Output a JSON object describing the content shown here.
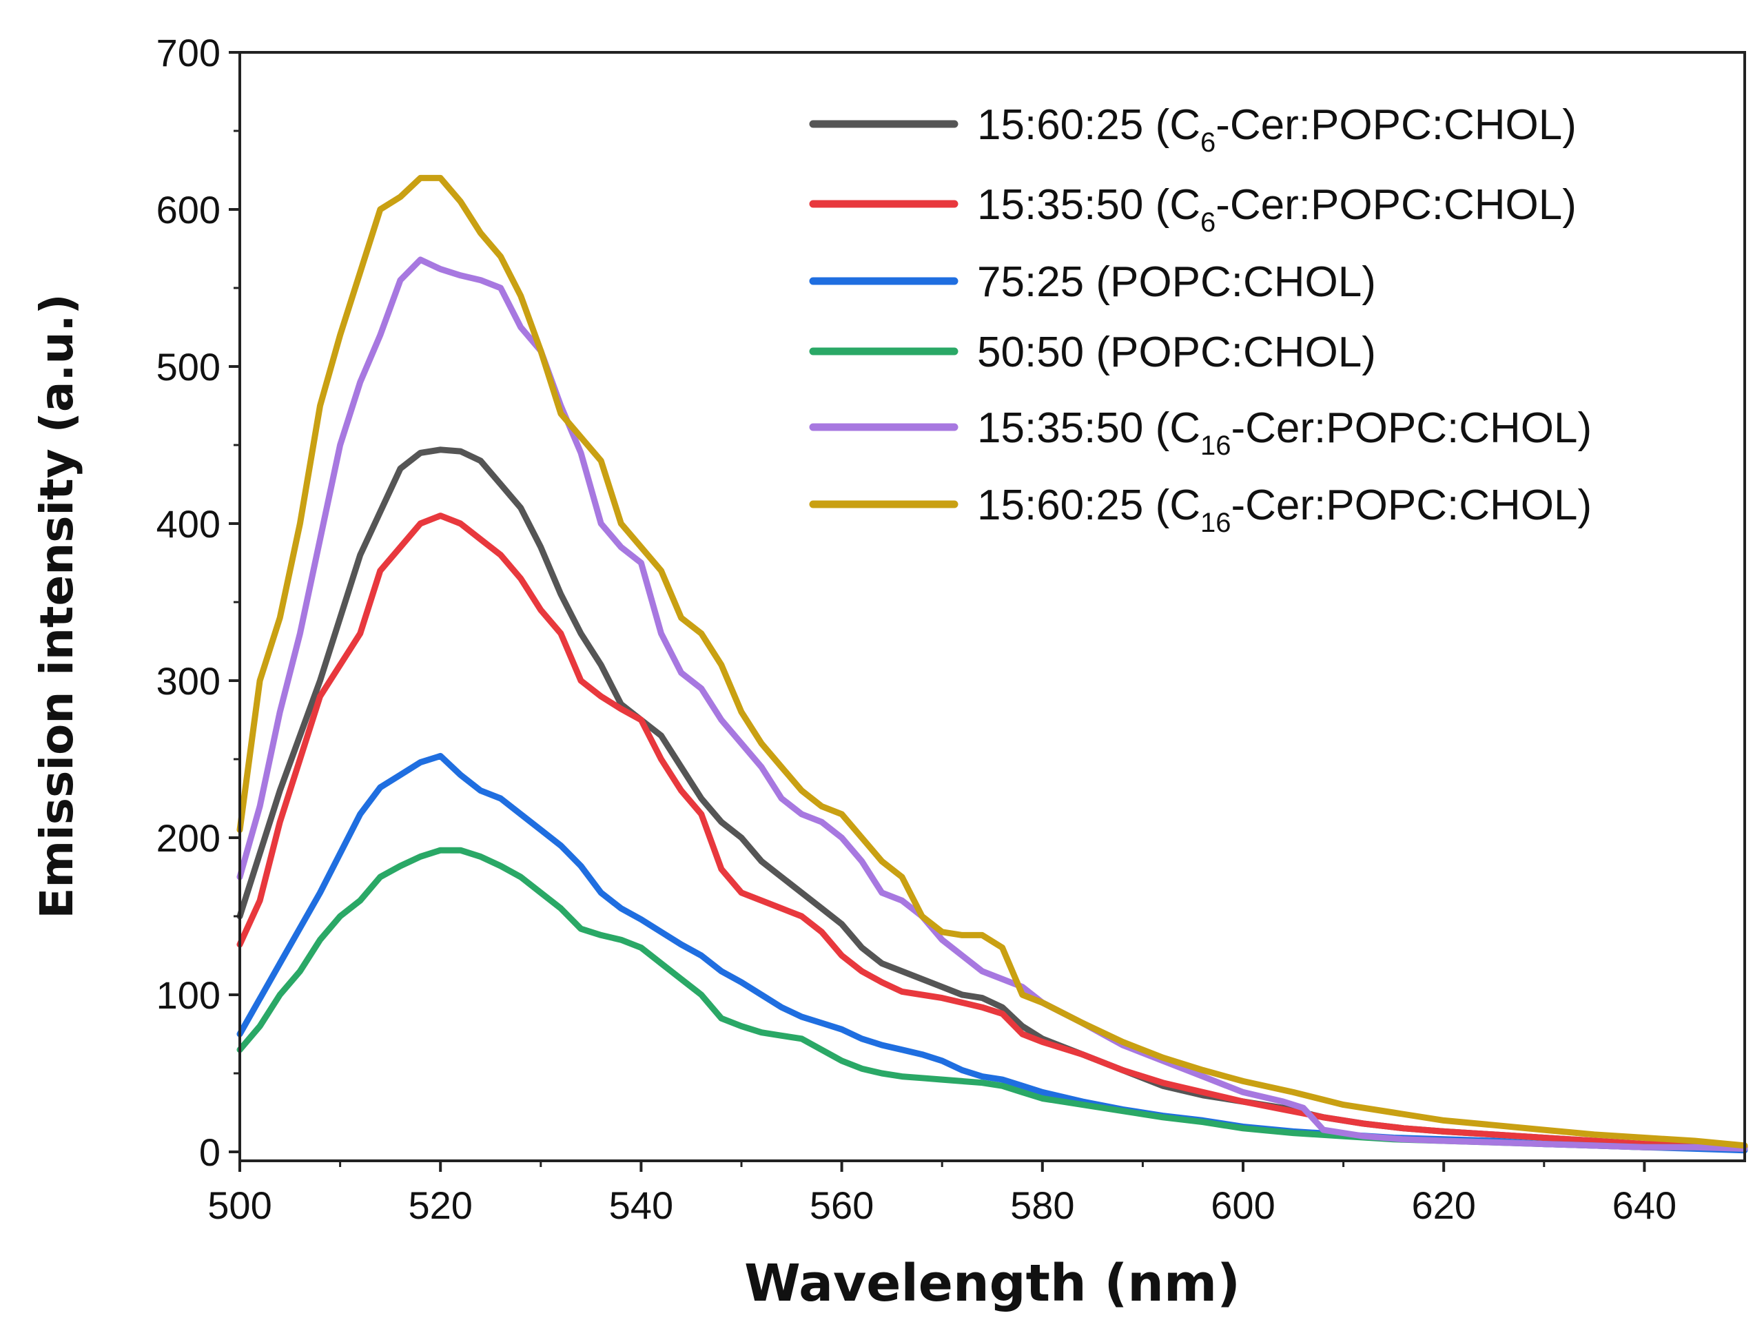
{
  "chart_data": {
    "type": "line",
    "title": "",
    "xlabel": "Wavelength (nm)",
    "ylabel": "Emission intensity (a.u.)",
    "xlim": [
      500,
      650
    ],
    "ylim": [
      0,
      700
    ],
    "x_ticks": [
      500,
      520,
      540,
      560,
      580,
      600,
      620,
      640
    ],
    "y_ticks": [
      0,
      100,
      200,
      300,
      400,
      500,
      600,
      700
    ],
    "grid": false,
    "legend_position": "top-right",
    "series": [
      {
        "name": "15:60:25 (C6-Cer:POPC:CHOL)",
        "label_main": "15:60:25 (C",
        "label_sub": "6",
        "label_rest": "-Cer:POPC:CHOL)",
        "color": "#555555",
        "x": [
          500,
          504,
          508,
          512,
          516,
          518,
          520,
          522,
          524,
          526,
          528,
          530,
          532,
          534,
          536,
          538,
          540,
          542,
          544,
          546,
          548,
          550,
          552,
          554,
          556,
          558,
          560,
          562,
          564,
          566,
          568,
          570,
          572,
          574,
          576,
          578,
          580,
          584,
          588,
          592,
          596,
          600,
          604,
          608,
          612,
          616,
          620,
          625,
          630,
          635,
          640,
          645,
          650
        ],
        "y": [
          150,
          230,
          300,
          380,
          435,
          445,
          447,
          446,
          440,
          425,
          410,
          385,
          355,
          330,
          310,
          285,
          275,
          265,
          245,
          225,
          210,
          200,
          185,
          175,
          165,
          155,
          145,
          130,
          120,
          115,
          110,
          105,
          100,
          98,
          92,
          80,
          72,
          62,
          52,
          42,
          36,
          32,
          28,
          22,
          18,
          15,
          13,
          11,
          9,
          7,
          5,
          4,
          3
        ]
      },
      {
        "name": "15:35:50 (C6-Cer:POPC:CHOL)",
        "label_main": "15:35:50 (C",
        "label_sub": "6",
        "label_rest": "-Cer:POPC:CHOL)",
        "color": "#e8383d",
        "x": [
          500,
          502,
          504,
          506,
          508,
          512,
          514,
          516,
          518,
          520,
          522,
          524,
          526,
          528,
          530,
          532,
          534,
          536,
          538,
          540,
          542,
          544,
          546,
          548,
          550,
          552,
          554,
          556,
          558,
          560,
          562,
          564,
          566,
          568,
          570,
          572,
          574,
          576,
          578,
          580,
          584,
          588,
          592,
          596,
          600,
          604,
          608,
          612,
          616,
          620,
          625,
          630,
          635,
          640,
          645,
          650
        ],
        "y": [
          132,
          160,
          210,
          250,
          290,
          330,
          370,
          385,
          400,
          405,
          400,
          390,
          380,
          365,
          345,
          330,
          300,
          290,
          282,
          275,
          250,
          230,
          215,
          180,
          165,
          160,
          155,
          150,
          140,
          125,
          115,
          108,
          102,
          100,
          98,
          95,
          92,
          88,
          75,
          70,
          62,
          52,
          44,
          38,
          32,
          27,
          22,
          18,
          15,
          13,
          11,
          9,
          7,
          5,
          4,
          3
        ]
      },
      {
        "name": "75:25 (POPC:CHOL)",
        "label_main": "75:25 (POPC:CHOL)",
        "label_sub": "",
        "label_rest": "",
        "color": "#1f6ee0",
        "x": [
          500,
          504,
          508,
          512,
          514,
          516,
          518,
          520,
          522,
          524,
          526,
          528,
          530,
          532,
          534,
          536,
          538,
          540,
          542,
          544,
          546,
          548,
          550,
          552,
          554,
          556,
          558,
          560,
          562,
          564,
          566,
          568,
          570,
          572,
          574,
          576,
          578,
          580,
          584,
          588,
          592,
          596,
          600,
          605,
          610,
          615,
          620,
          625,
          630,
          635,
          640,
          645,
          650
        ],
        "y": [
          75,
          120,
          165,
          215,
          232,
          240,
          248,
          252,
          240,
          230,
          225,
          215,
          205,
          195,
          182,
          165,
          155,
          148,
          140,
          132,
          125,
          115,
          108,
          100,
          92,
          86,
          82,
          78,
          72,
          68,
          65,
          62,
          58,
          52,
          48,
          46,
          42,
          38,
          32,
          27,
          23,
          20,
          16,
          13,
          11,
          9,
          8,
          7,
          5,
          4,
          3,
          2,
          1
        ]
      },
      {
        "name": "50:50 (POPC:CHOL)",
        "label_main": "50:50 (POPC:CHOL)",
        "label_sub": "",
        "label_rest": "",
        "color": "#2aa866",
        "x": [
          500,
          502,
          504,
          506,
          508,
          510,
          512,
          514,
          516,
          518,
          520,
          522,
          524,
          526,
          528,
          530,
          532,
          534,
          536,
          538,
          540,
          542,
          544,
          546,
          548,
          550,
          552,
          554,
          556,
          558,
          560,
          562,
          564,
          566,
          568,
          570,
          572,
          574,
          576,
          578,
          580,
          584,
          588,
          592,
          596,
          600,
          605,
          610,
          615,
          620,
          625,
          630,
          635,
          640,
          645,
          650
        ],
        "y": [
          65,
          80,
          100,
          115,
          135,
          150,
          160,
          175,
          182,
          188,
          192,
          192,
          188,
          182,
          175,
          165,
          155,
          142,
          138,
          135,
          130,
          120,
          110,
          100,
          85,
          80,
          76,
          74,
          72,
          65,
          58,
          53,
          50,
          48,
          47,
          46,
          45,
          44,
          42,
          38,
          34,
          30,
          26,
          22,
          19,
          15,
          12,
          10,
          8,
          7,
          6,
          5,
          4,
          3,
          3,
          2
        ]
      },
      {
        "name": "15:35:50 (C16-Cer:POPC:CHOL)",
        "label_main": "15:35:50 (C",
        "label_sub": "16",
        "label_rest": "-Cer:POPC:CHOL)",
        "color": "#a778e0",
        "x": [
          500,
          502,
          504,
          506,
          508,
          510,
          512,
          514,
          516,
          518,
          520,
          522,
          524,
          526,
          528,
          530,
          532,
          534,
          536,
          538,
          540,
          542,
          544,
          546,
          548,
          550,
          552,
          554,
          556,
          558,
          560,
          562,
          564,
          566,
          568,
          570,
          572,
          574,
          576,
          578,
          580,
          584,
          588,
          592,
          596,
          600,
          604,
          606,
          608,
          612,
          616,
          620,
          625,
          630,
          635,
          640,
          645,
          650
        ],
        "y": [
          175,
          220,
          280,
          330,
          390,
          450,
          490,
          520,
          555,
          568,
          562,
          558,
          555,
          550,
          525,
          510,
          475,
          445,
          400,
          385,
          375,
          330,
          305,
          295,
          275,
          260,
          245,
          225,
          215,
          210,
          200,
          185,
          165,
          160,
          150,
          135,
          125,
          115,
          110,
          105,
          95,
          82,
          68,
          58,
          48,
          38,
          32,
          28,
          14,
          10,
          8,
          7,
          6,
          5,
          4,
          3,
          3,
          2
        ]
      },
      {
        "name": "15:60:25 (C16-Cer:POPC:CHOL)",
        "label_main": "15:60:25 (C",
        "label_sub": "16",
        "label_rest": "-Cer:POPC:CHOL)",
        "color": "#c9a012",
        "x": [
          500,
          502,
          504,
          506,
          508,
          510,
          512,
          514,
          516,
          518,
          520,
          522,
          524,
          526,
          528,
          530,
          532,
          534,
          536,
          538,
          540,
          542,
          544,
          546,
          548,
          550,
          552,
          554,
          556,
          558,
          560,
          562,
          564,
          566,
          568,
          570,
          572,
          574,
          576,
          578,
          580,
          584,
          588,
          592,
          596,
          600,
          605,
          610,
          615,
          620,
          625,
          630,
          635,
          640,
          645,
          650
        ],
        "y": [
          205,
          300,
          340,
          400,
          475,
          520,
          560,
          600,
          608,
          620,
          620,
          605,
          585,
          570,
          545,
          510,
          470,
          455,
          440,
          400,
          385,
          370,
          340,
          330,
          310,
          280,
          260,
          245,
          230,
          220,
          215,
          200,
          185,
          175,
          150,
          140,
          138,
          138,
          130,
          100,
          95,
          82,
          70,
          60,
          52,
          45,
          38,
          30,
          25,
          20,
          17,
          14,
          11,
          9,
          7,
          4
        ]
      }
    ]
  }
}
